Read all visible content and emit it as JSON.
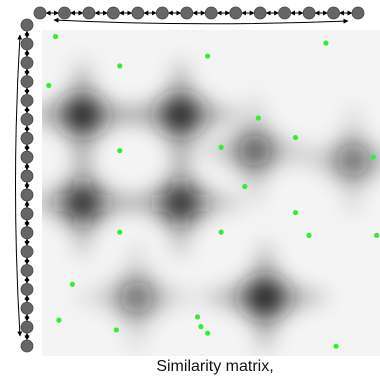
{
  "caption": "Similarity matrix,",
  "colors": {
    "node": "#666666",
    "node_stroke": "#444444",
    "edge": "#000000",
    "point": "#33ee33",
    "matrix_light": "#f4f4f4",
    "matrix_dark": "#111111"
  },
  "top_sequence": {
    "node_count": 14
  },
  "left_sequence": {
    "node_count": 18
  },
  "similarity_matrix": {
    "dark_blobs": [
      {
        "row": 0.26,
        "col": 0.12,
        "strength": 0.95
      },
      {
        "row": 0.26,
        "col": 0.41,
        "strength": 0.95
      },
      {
        "row": 0.53,
        "col": 0.12,
        "strength": 0.85
      },
      {
        "row": 0.53,
        "col": 0.41,
        "strength": 0.85
      },
      {
        "row": 0.82,
        "col": 0.66,
        "strength": 1.0
      },
      {
        "row": 0.37,
        "col": 0.63,
        "strength": 0.55
      },
      {
        "row": 0.82,
        "col": 0.28,
        "strength": 0.45
      },
      {
        "row": 0.4,
        "col": 0.92,
        "strength": 0.45
      }
    ],
    "points": [
      {
        "row": 0.02,
        "col": 0.04
      },
      {
        "row": 0.08,
        "col": 0.49
      },
      {
        "row": 0.11,
        "col": 0.23
      },
      {
        "row": 0.04,
        "col": 0.84
      },
      {
        "row": 0.17,
        "col": 0.02
      },
      {
        "row": 0.27,
        "col": 0.64
      },
      {
        "row": 0.33,
        "col": 0.75
      },
      {
        "row": 0.37,
        "col": 0.23
      },
      {
        "row": 0.36,
        "col": 0.53
      },
      {
        "row": 0.39,
        "col": 0.98
      },
      {
        "row": 0.48,
        "col": 0.6
      },
      {
        "row": 0.56,
        "col": 0.75
      },
      {
        "row": 0.62,
        "col": 0.23
      },
      {
        "row": 0.62,
        "col": 0.53
      },
      {
        "row": 0.63,
        "col": 0.79
      },
      {
        "row": 0.63,
        "col": 0.99
      },
      {
        "row": 0.78,
        "col": 0.09
      },
      {
        "row": 0.88,
        "col": 0.46
      },
      {
        "row": 0.89,
        "col": 0.05
      },
      {
        "row": 0.91,
        "col": 0.47
      },
      {
        "row": 0.93,
        "col": 0.49
      },
      {
        "row": 0.92,
        "col": 0.22
      },
      {
        "row": 0.97,
        "col": 0.87
      }
    ]
  }
}
